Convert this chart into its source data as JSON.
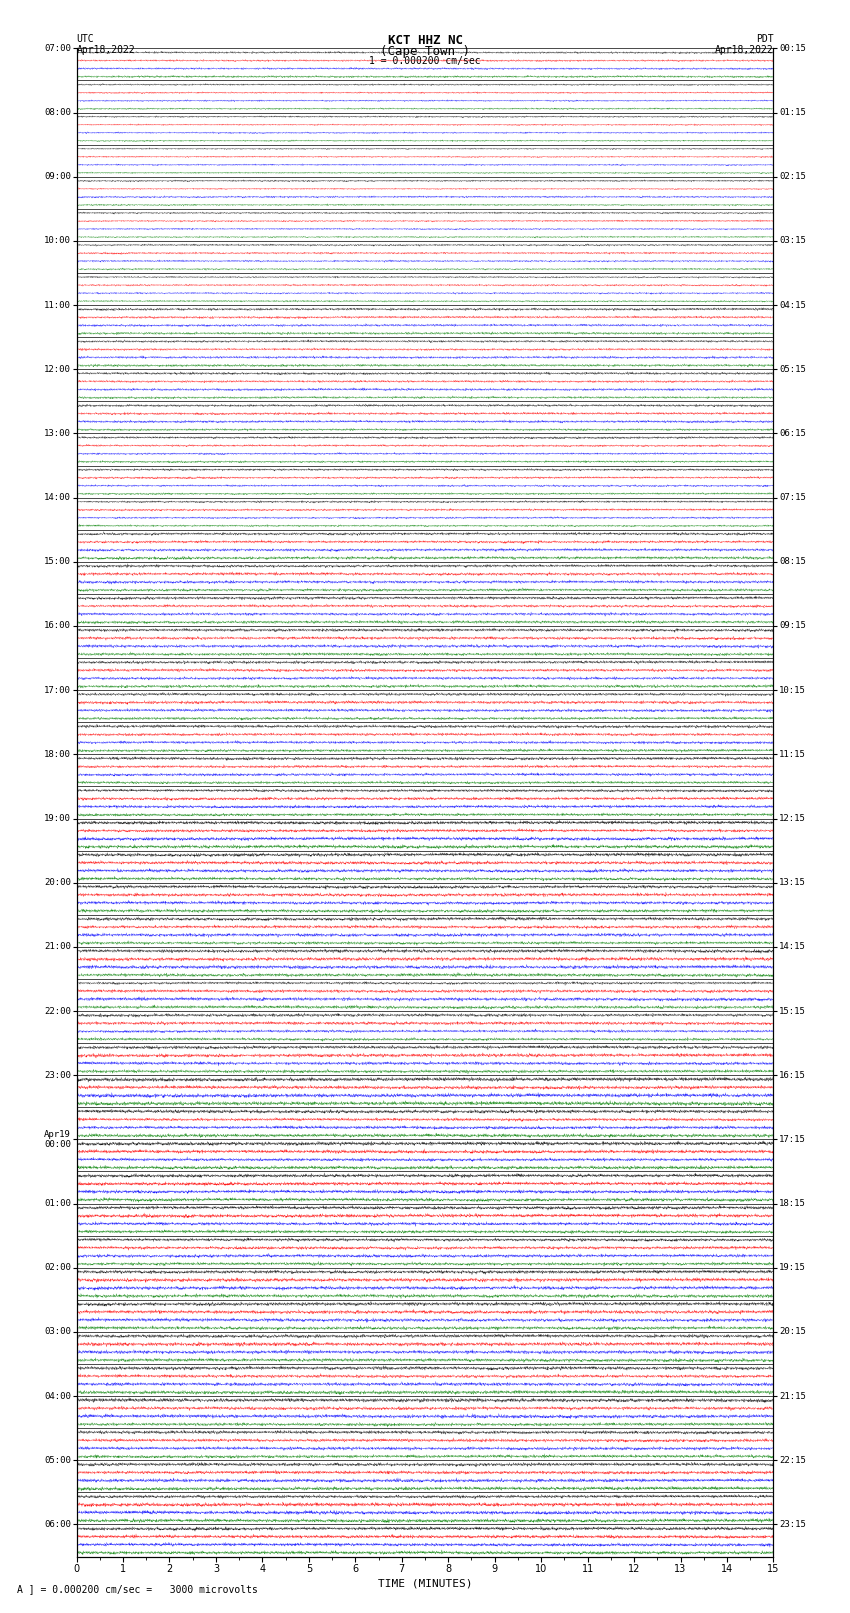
{
  "title_line1": "KCT HHZ NC",
  "title_line2": "(Cape Town )",
  "title_scale": "1 = 0.000200 cm/sec",
  "left_label_top": "UTC",
  "left_label_date": "Apr18,2022",
  "right_label_top": "PDT",
  "right_label_date": "Apr18,2022",
  "bottom_label": "TIME (MINUTES)",
  "bottom_note": "A ] = 0.000200 cm/sec =   3000 microvolts",
  "num_rows": 47,
  "x_min": 0,
  "x_max": 15,
  "x_ticks": [
    0,
    1,
    2,
    3,
    4,
    5,
    6,
    7,
    8,
    9,
    10,
    11,
    12,
    13,
    14,
    15
  ],
  "colors_cycle": [
    "black",
    "red",
    "blue",
    "green"
  ],
  "fig_width": 8.5,
  "fig_height": 16.13,
  "dpi": 100,
  "bg_color": "white",
  "plot_bg": "white",
  "left_ytick_hours": [
    "07:00",
    "08:00",
    "09:00",
    "10:00",
    "11:00",
    "12:00",
    "13:00",
    "14:00",
    "15:00",
    "16:00",
    "17:00",
    "18:00",
    "19:00",
    "20:00",
    "21:00",
    "22:00",
    "23:00",
    "Apr19\n00:00",
    "01:00",
    "02:00",
    "03:00",
    "04:00",
    "05:00",
    "06:00"
  ],
  "right_ytick_hours": [
    "00:15",
    "01:15",
    "02:15",
    "03:15",
    "04:15",
    "05:15",
    "06:15",
    "07:15",
    "08:15",
    "09:15",
    "10:15",
    "11:15",
    "12:15",
    "13:15",
    "14:15",
    "15:15",
    "16:15",
    "17:15",
    "18:15",
    "19:15",
    "20:15",
    "21:15",
    "22:15",
    "23:15"
  ],
  "traces_per_row": 4,
  "n_samples": 3000,
  "amp_early": 0.45,
  "amp_mid": 0.6,
  "amp_late": 0.75
}
